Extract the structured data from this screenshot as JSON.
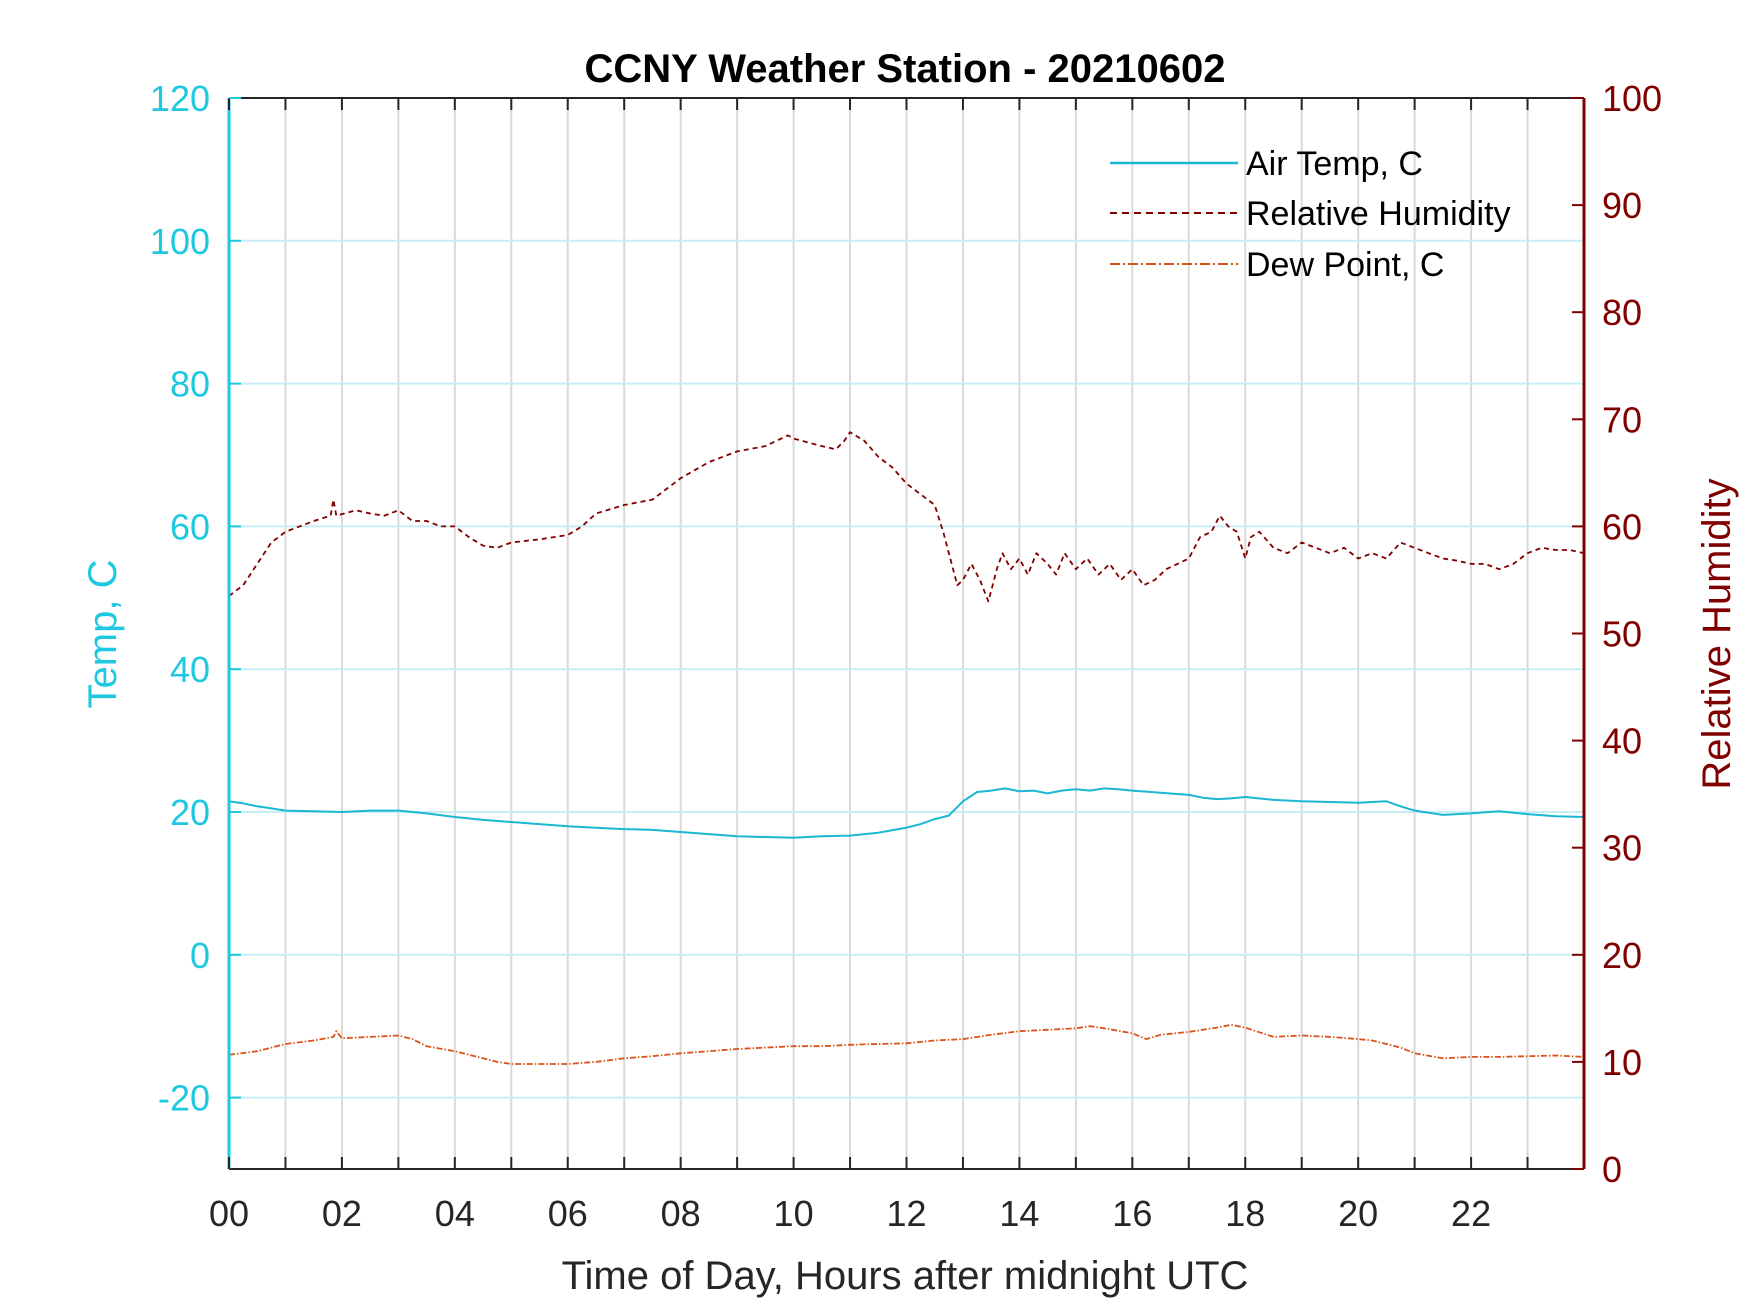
{
  "chart_data": {
    "type": "line",
    "title": "CCNY Weather Station - 20210602",
    "xlabel": "Time of Day, Hours after midnight UTC",
    "ylabel_left": "Temp, C",
    "ylabel_right": "Relative Humidity",
    "xlim": [
      0,
      24
    ],
    "ylim_left": [
      -30,
      120
    ],
    "ylim_right": [
      0,
      100
    ],
    "x_ticks": [
      0,
      2,
      4,
      6,
      8,
      10,
      12,
      14,
      16,
      18,
      20,
      22
    ],
    "x_tick_labels": [
      "00",
      "02",
      "04",
      "06",
      "08",
      "10",
      "12",
      "14",
      "16",
      "18",
      "20",
      "22"
    ],
    "y_left_ticks": [
      -20,
      0,
      20,
      40,
      60,
      80,
      100,
      120
    ],
    "y_right_ticks": [
      0,
      10,
      20,
      30,
      40,
      50,
      60,
      70,
      80,
      90,
      100
    ],
    "grid": true,
    "legend_position": "top-right",
    "colors": {
      "left_axis": "#1ec8e0",
      "right_axis": "#800000",
      "air_temp": "#1ab8d2",
      "humidity": "#800000",
      "dew_point": "#d95319",
      "grid_vertical": "#d9d9d9",
      "grid_horizontal": "#c8eef5"
    },
    "series": [
      {
        "name": "Air Temp, C",
        "axis": "left",
        "style": "solid",
        "x": [
          0,
          0.25,
          0.5,
          0.75,
          1,
          1.5,
          2,
          2.5,
          3,
          3.5,
          4,
          4.5,
          5,
          5.5,
          6,
          6.5,
          7,
          7.5,
          8,
          8.5,
          9,
          9.5,
          10,
          10.5,
          11,
          11.5,
          12,
          12.25,
          12.5,
          12.75,
          13,
          13.25,
          13.5,
          13.75,
          14,
          14.25,
          14.5,
          14.75,
          15,
          15.25,
          15.5,
          15.75,
          16,
          16.5,
          17,
          17.25,
          17.5,
          17.75,
          18,
          18.5,
          19,
          19.5,
          20,
          20.25,
          20.5,
          20.75,
          21,
          21.5,
          22,
          22.5,
          23,
          23.5,
          24
        ],
        "values": [
          21.5,
          21.2,
          20.8,
          20.5,
          20.2,
          20.1,
          20.0,
          20.2,
          20.2,
          19.8,
          19.3,
          18.9,
          18.6,
          18.3,
          18.0,
          17.8,
          17.6,
          17.5,
          17.2,
          16.9,
          16.6,
          16.5,
          16.4,
          16.6,
          16.7,
          17.1,
          17.8,
          18.3,
          19.0,
          19.5,
          21.5,
          22.8,
          23.0,
          23.3,
          22.9,
          23.0,
          22.6,
          23.0,
          23.2,
          23.0,
          23.3,
          23.2,
          23.0,
          22.7,
          22.4,
          22.0,
          21.8,
          21.9,
          22.1,
          21.7,
          21.5,
          21.4,
          21.3,
          21.4,
          21.5,
          20.8,
          20.2,
          19.6,
          19.8,
          20.1,
          19.7,
          19.4,
          19.3
        ]
      },
      {
        "name": "Relative Humidity",
        "axis": "right",
        "style": "dashed",
        "x": [
          0,
          0.25,
          0.5,
          0.75,
          1,
          1.5,
          1.8,
          1.85,
          1.9,
          2.25,
          2.5,
          2.75,
          3.0,
          3.25,
          3.5,
          3.75,
          4.0,
          4.25,
          4.5,
          4.75,
          5.0,
          5.5,
          6.0,
          6.25,
          6.5,
          7.0,
          7.5,
          7.75,
          8.0,
          8.5,
          9.0,
          9.5,
          9.9,
          10.0,
          10.5,
          10.75,
          10.9,
          11.0,
          11.25,
          11.5,
          11.75,
          12.0,
          12.25,
          12.5,
          12.65,
          12.8,
          12.9,
          13.0,
          13.15,
          13.3,
          13.45,
          13.6,
          13.7,
          13.85,
          14.0,
          14.15,
          14.3,
          14.5,
          14.65,
          14.8,
          15.0,
          15.2,
          15.4,
          15.6,
          15.8,
          16.0,
          16.2,
          16.4,
          16.6,
          16.8,
          17.0,
          17.2,
          17.4,
          17.55,
          17.7,
          17.85,
          18.0,
          18.1,
          18.25,
          18.5,
          18.75,
          19.0,
          19.25,
          19.5,
          19.75,
          20.0,
          20.25,
          20.5,
          20.75,
          21.0,
          21.25,
          21.5,
          21.75,
          22.0,
          22.25,
          22.5,
          22.75,
          23.0,
          23.25,
          23.5,
          23.75,
          24.0
        ],
        "values": [
          53.5,
          54.5,
          56.5,
          58.5,
          59.5,
          60.5,
          61.0,
          62.5,
          61.0,
          61.5,
          61.2,
          61.0,
          61.5,
          60.5,
          60.5,
          60.0,
          60.0,
          59.0,
          58.2,
          58.0,
          58.5,
          58.8,
          59.2,
          60.0,
          61.2,
          62.0,
          62.5,
          63.5,
          64.5,
          66.0,
          67.0,
          67.5,
          68.5,
          68.2,
          67.5,
          67.2,
          68.0,
          68.8,
          68.0,
          66.5,
          65.5,
          64.0,
          63.0,
          62.0,
          59.5,
          56.5,
          54.5,
          55.0,
          56.5,
          55.0,
          53.0,
          56.0,
          57.5,
          56.0,
          57.0,
          55.5,
          57.5,
          56.5,
          55.5,
          57.5,
          56.0,
          57.0,
          55.5,
          56.5,
          55.0,
          56.0,
          54.5,
          55.0,
          56.0,
          56.5,
          57.0,
          59.0,
          59.5,
          61.0,
          60.0,
          59.5,
          57.0,
          59.0,
          59.5,
          58.0,
          57.5,
          58.5,
          58.0,
          57.5,
          58.0,
          57.0,
          57.5,
          57.0,
          58.5,
          58.0,
          57.5,
          57.0,
          56.8,
          56.5,
          56.5,
          56.0,
          56.5,
          57.5,
          58.0,
          57.8,
          57.8,
          57.5
        ]
      },
      {
        "name": "Dew Point, C",
        "axis": "left",
        "style": "dash-dot",
        "x": [
          0,
          0.5,
          1,
          1.5,
          1.85,
          1.9,
          2,
          2.5,
          3,
          3.25,
          3.5,
          4,
          4.5,
          4.75,
          5,
          5.5,
          6,
          6.5,
          7,
          7.5,
          8,
          8.5,
          9,
          9.5,
          10,
          10.5,
          11,
          11.5,
          12,
          12.5,
          13,
          13.5,
          14,
          14.5,
          15,
          15.25,
          15.5,
          16,
          16.25,
          16.5,
          17,
          17.5,
          17.75,
          18,
          18.5,
          19,
          19.5,
          20,
          20.25,
          20.5,
          20.75,
          21,
          21.5,
          22,
          22.5,
          23,
          23.5,
          24
        ],
        "values": [
          -14.0,
          -13.5,
          -12.5,
          -12.0,
          -11.5,
          -10.7,
          -11.7,
          -11.5,
          -11.3,
          -11.8,
          -12.8,
          -13.5,
          -14.5,
          -15.0,
          -15.3,
          -15.3,
          -15.3,
          -15.0,
          -14.5,
          -14.2,
          -13.8,
          -13.5,
          -13.2,
          -13.0,
          -12.8,
          -12.8,
          -12.6,
          -12.5,
          -12.4,
          -12.0,
          -11.8,
          -11.2,
          -10.7,
          -10.5,
          -10.3,
          -10.0,
          -10.3,
          -11.0,
          -11.8,
          -11.2,
          -10.8,
          -10.2,
          -9.8,
          -10.2,
          -11.5,
          -11.3,
          -11.5,
          -11.8,
          -12.0,
          -12.5,
          -13.0,
          -13.8,
          -14.5,
          -14.3,
          -14.3,
          -14.2,
          -14.1,
          -14.3
        ]
      }
    ]
  }
}
